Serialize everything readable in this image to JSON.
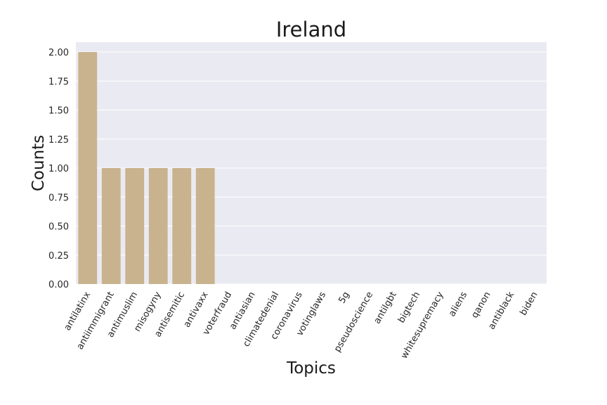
{
  "chart_data": {
    "type": "bar",
    "title": "Ireland",
    "xlabel": "Topics",
    "ylabel": "Counts",
    "categories": [
      "antilatinx",
      "antiimmigrant",
      "antimuslim",
      "misogyny",
      "antisemitic",
      "antivaxx",
      "voterfraud",
      "antiasian",
      "climatedenial",
      "coronavirus",
      "votinglaws",
      "5g",
      "pseudoscience",
      "antilgbt",
      "bigtech",
      "whitesupremacy",
      "aliens",
      "qanon",
      "antiblack",
      "biden"
    ],
    "values": [
      2,
      1,
      1,
      1,
      1,
      1,
      0,
      0,
      0,
      0,
      0,
      0,
      0,
      0,
      0,
      0,
      0,
      0,
      0,
      0
    ],
    "ylim": [
      0,
      2.1
    ],
    "yticks": [
      "0.00",
      "0.25",
      "0.50",
      "0.75",
      "1.00",
      "1.25",
      "1.50",
      "1.75",
      "2.00"
    ],
    "grid": true,
    "bar_color": "#c8b38e",
    "plot_background": "#eaeaf2"
  }
}
